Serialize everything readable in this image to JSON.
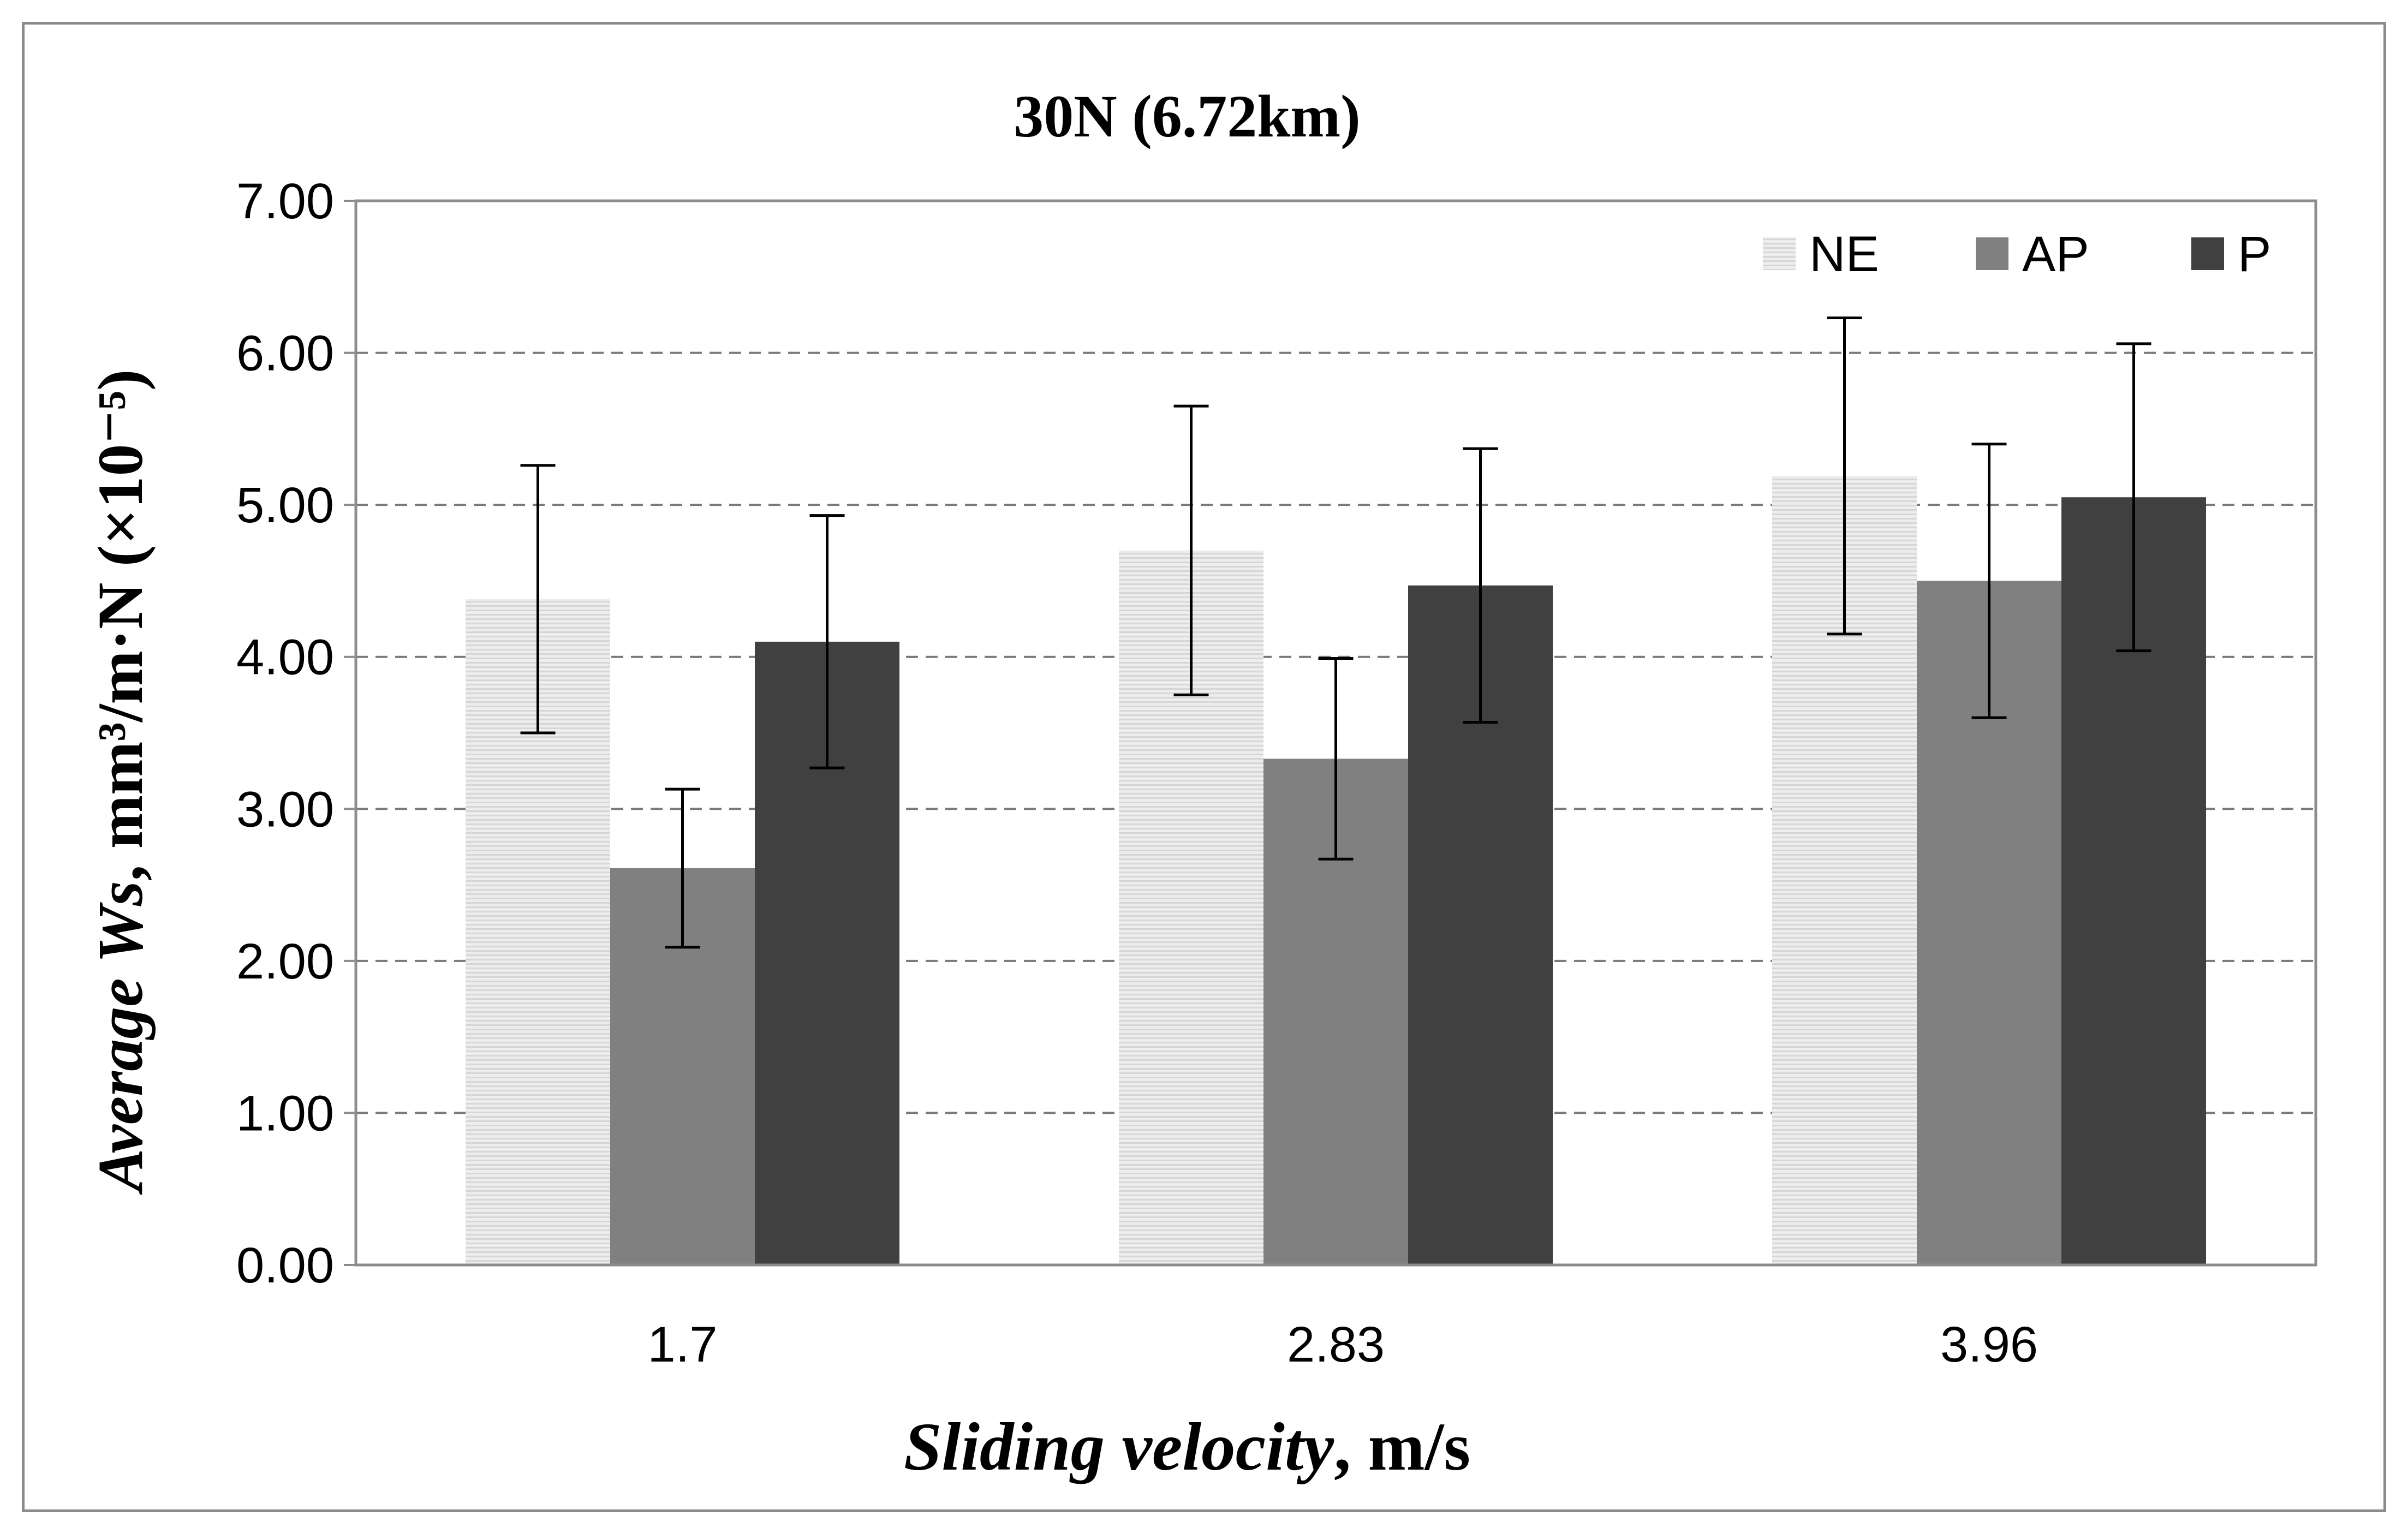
{
  "chart_data": {
    "type": "bar",
    "title": "30N (6.72km)",
    "xlabel_italic": "Sliding velocity",
    "xlabel_rest": ", m/s",
    "ylabel_italic_1": "Average ",
    "ylabel_italic_2": "Ws",
    "ylabel_rest": ", mm³/m·N (×10⁻⁵)",
    "categories": [
      "1.7",
      "2.83",
      "3.96"
    ],
    "ylim": [
      0,
      7
    ],
    "yticks": [
      "0.00",
      "1.00",
      "2.00",
      "3.00",
      "4.00",
      "5.00",
      "6.00",
      "7.00"
    ],
    "grid": true,
    "legend_position": "top-right",
    "series": [
      {
        "name": "NE",
        "color": "#e6e6e6",
        "pattern": "horizontal-hatch",
        "values": [
          4.38,
          4.7,
          5.19
        ],
        "errors": [
          0.88,
          0.95,
          1.04
        ]
      },
      {
        "name": "AP",
        "color": "#808080",
        "pattern": "solid",
        "values": [
          2.61,
          3.33,
          4.5
        ],
        "errors": [
          0.52,
          0.66,
          0.9
        ]
      },
      {
        "name": "P",
        "color": "#404040",
        "pattern": "solid",
        "values": [
          4.1,
          4.47,
          5.05
        ],
        "errors": [
          0.83,
          0.9,
          1.01
        ]
      }
    ]
  }
}
